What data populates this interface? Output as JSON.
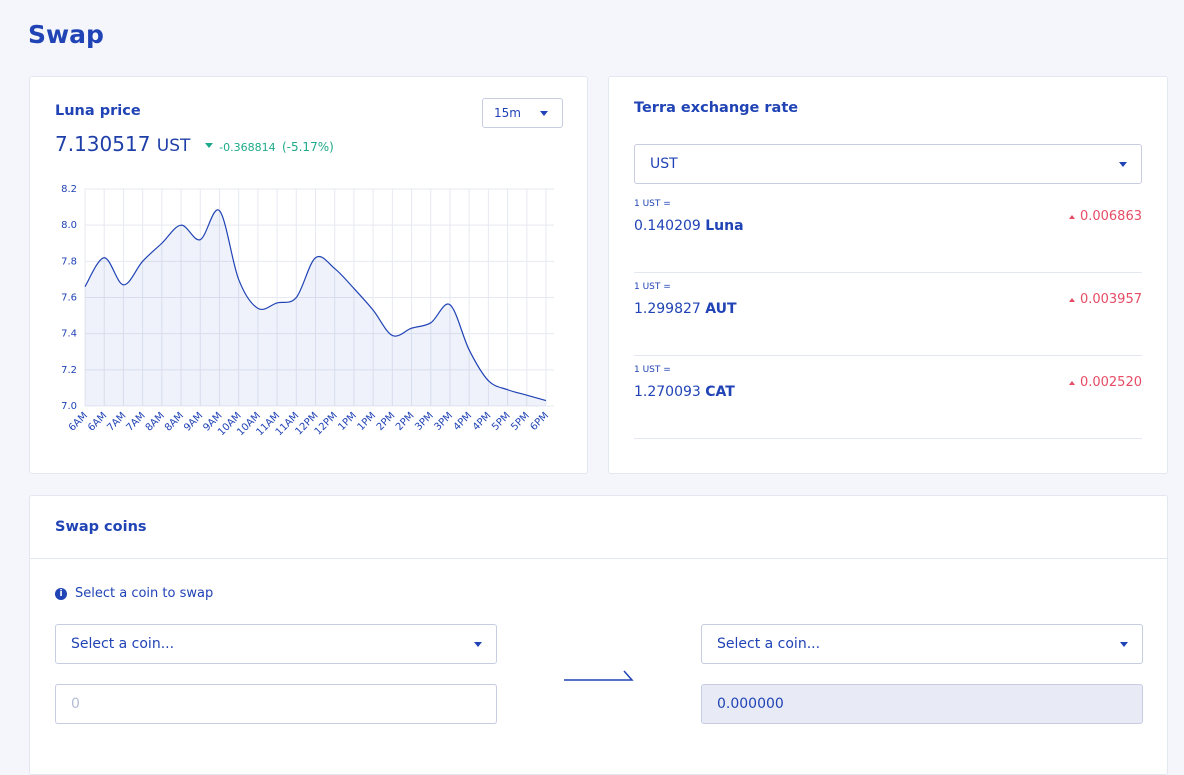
{
  "header": {
    "title": "Swap"
  },
  "luna_card": {
    "title": "Luna price",
    "interval": "15m",
    "price": "7.130517",
    "currency": "UST",
    "change": "-0.368814",
    "change_pct": "(-5.17%)"
  },
  "chart_data": {
    "type": "line",
    "color": "#2043b5",
    "grid": true,
    "categories": [
      "6AM",
      "6AM",
      "7AM",
      "7AM",
      "8AM",
      "8AM",
      "9AM",
      "9AM",
      "10AM",
      "10AM",
      "11AM",
      "11AM",
      "12PM",
      "12PM",
      "1PM",
      "1PM",
      "2PM",
      "2PM",
      "3PM",
      "3PM",
      "4PM",
      "4PM",
      "5PM",
      "5PM",
      "6PM"
    ],
    "values": [
      7.66,
      7.82,
      7.67,
      7.8,
      7.9,
      8.0,
      7.92,
      8.08,
      7.7,
      7.54,
      7.57,
      7.6,
      7.82,
      7.76,
      7.65,
      7.53,
      7.39,
      7.43,
      7.46,
      7.56,
      7.31,
      7.14,
      7.09,
      7.06,
      7.03
    ],
    "ylim": [
      7.0,
      8.2
    ],
    "yticks": [
      {
        "value": 7.0,
        "label": "7.0"
      },
      7.2,
      7.4,
      7.6,
      7.8,
      {
        "value": 8.0,
        "label": "8.0"
      },
      8.2
    ]
  },
  "exchange_card": {
    "title": "Terra exchange rate",
    "currency": "UST",
    "rates": [
      {
        "label": "1 UST =",
        "amount": "0.140209",
        "coin": "Luna",
        "change": "0.006863"
      },
      {
        "label": "1 UST =",
        "amount": "1.299827",
        "coin": "AUT",
        "change": "0.003957"
      },
      {
        "label": "1 UST =",
        "amount": "1.270093",
        "coin": "CAT",
        "change": "0.002520"
      }
    ]
  },
  "swap_card": {
    "title": "Swap coins",
    "info": "Select a coin to swap",
    "from_select": "Select a coin...",
    "from_amount_placeholder": "0",
    "to_select": "Select a coin...",
    "to_amount": "0.000000"
  }
}
